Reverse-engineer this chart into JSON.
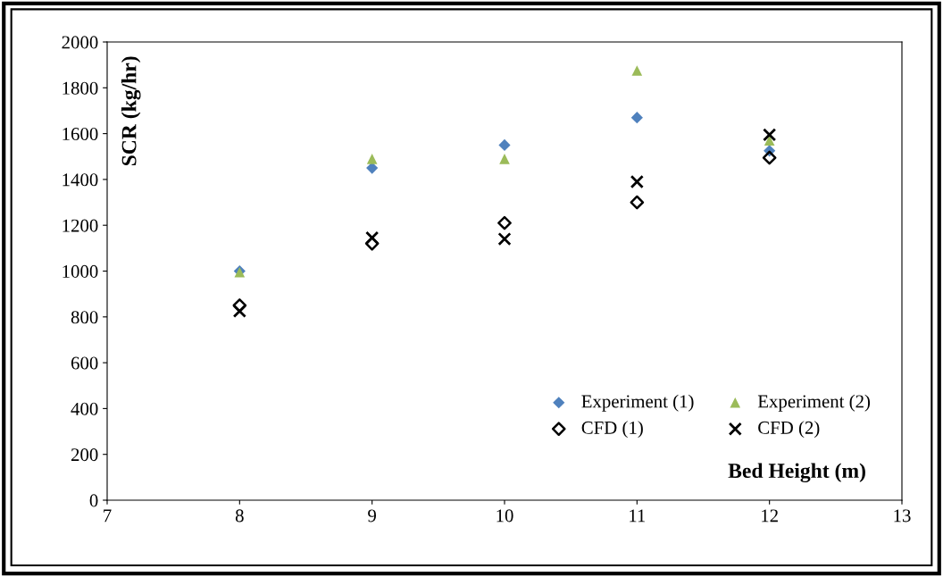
{
  "chart_data": {
    "type": "scatter",
    "xlabel": "Bed Height (m)",
    "ylabel": "SCR (kg/hr)",
    "x": [
      8,
      9,
      10,
      11,
      12
    ],
    "series": [
      {
        "name": "Experiment (1)",
        "color": "#4f81bd",
        "marker": "diamond",
        "values": [
          1000,
          1450,
          1550,
          1670,
          1525
        ]
      },
      {
        "name": "CFD (1)",
        "color": "#000000",
        "marker": "diamond_open",
        "values": [
          850,
          1120,
          1210,
          1300,
          1495
        ]
      },
      {
        "name": "Experiment (2)",
        "color": "#9bbb59",
        "marker": "triangle",
        "values": [
          995,
          1490,
          1490,
          1875,
          1570
        ]
      },
      {
        "name": "CFD (2)",
        "color": "#000000",
        "marker": "cross",
        "values": [
          825,
          1145,
          1140,
          1390,
          1595
        ]
      }
    ],
    "xlim": [
      7,
      13
    ],
    "xticks": [
      7,
      8,
      9,
      10,
      11,
      12,
      13
    ],
    "ylim": [
      0,
      2000
    ],
    "yticks": [
      0,
      200,
      400,
      600,
      800,
      1000,
      1200,
      1400,
      1600,
      1800,
      2000
    ],
    "grid": false,
    "legend": "bottom right"
  }
}
